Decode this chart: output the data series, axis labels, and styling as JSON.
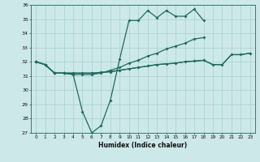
{
  "x": [
    0,
    1,
    2,
    3,
    4,
    5,
    6,
    7,
    8,
    9,
    10,
    11,
    12,
    13,
    14,
    15,
    16,
    17,
    18,
    19,
    20,
    21,
    22,
    23
  ],
  "line_dip": [
    32.0,
    31.8,
    31.2,
    31.2,
    31.1,
    28.5,
    27.0,
    27.5,
    29.3,
    32.2,
    34.9,
    34.9,
    35.6,
    35.1,
    35.6,
    35.2,
    35.2,
    35.7,
    34.9,
    null,
    null,
    null,
    null,
    null
  ],
  "line_mid": [
    32.0,
    31.8,
    31.2,
    31.2,
    31.1,
    31.1,
    31.1,
    31.2,
    31.4,
    31.6,
    31.9,
    32.1,
    32.4,
    32.6,
    32.9,
    33.1,
    33.3,
    33.6,
    33.7,
    null,
    null,
    null,
    null,
    null
  ],
  "line_flat1": [
    32.0,
    31.8,
    31.2,
    31.2,
    31.2,
    31.2,
    31.2,
    31.25,
    31.3,
    31.4,
    31.5,
    31.6,
    31.7,
    31.8,
    31.85,
    31.9,
    32.0,
    32.05,
    32.1,
    31.8,
    31.8,
    32.5,
    32.5,
    32.6
  ],
  "line_flat2": [
    32.0,
    31.8,
    31.2,
    31.2,
    31.2,
    31.2,
    31.2,
    31.25,
    31.3,
    31.4,
    31.5,
    31.6,
    31.7,
    31.8,
    31.85,
    31.9,
    32.0,
    32.05,
    32.1,
    31.8,
    31.8,
    32.5,
    32.5,
    32.6
  ],
  "xlabel": "Humidex (Indice chaleur)",
  "ylim": [
    27,
    36
  ],
  "xlim": [
    -0.5,
    23.5
  ],
  "yticks": [
    27,
    28,
    29,
    30,
    31,
    32,
    33,
    34,
    35,
    36
  ],
  "xticks": [
    0,
    1,
    2,
    3,
    4,
    5,
    6,
    7,
    8,
    9,
    10,
    11,
    12,
    13,
    14,
    15,
    16,
    17,
    18,
    19,
    20,
    21,
    22,
    23
  ],
  "line_color": "#1e6b5e",
  "bg_color": "#cce8e8",
  "grid_color": "#a8d0d0"
}
